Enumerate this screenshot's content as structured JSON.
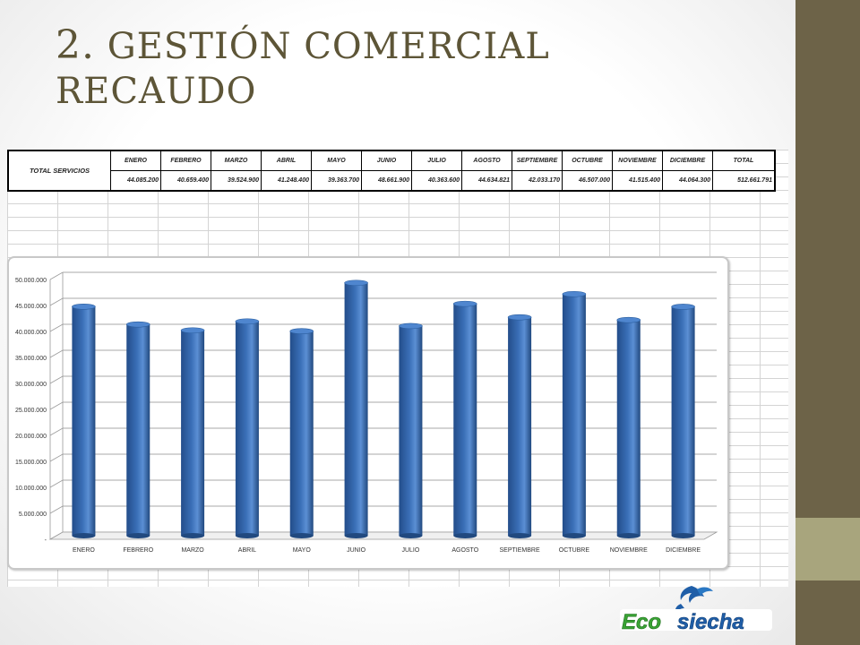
{
  "slide": {
    "title_number": "2.",
    "title_line1": "GESTIÓN COMERCIAL",
    "title_line2": "RECAUDO"
  },
  "table": {
    "row_label": "TOTAL SERVICIOS",
    "headers": [
      "ENERO",
      "FEBRERO",
      "MARZO",
      "ABRIL",
      "MAYO",
      "JUNIO",
      "JULIO",
      "AGOSTO",
      "SEPTIEMBRE",
      "OCTUBRE",
      "NOVIEMBRE",
      "DICIEMBRE",
      "TOTAL"
    ],
    "values": [
      "44.085.200",
      "40.659.400",
      "39.524.900",
      "41.248.400",
      "39.363.700",
      "48.661.900",
      "40.363.600",
      "44.634.821",
      "42.033.170",
      "46.507.000",
      "41.515.400",
      "44.064.300",
      "512.661.791"
    ]
  },
  "chart_data": {
    "type": "bar",
    "categories": [
      "ENERO",
      "FEBRERO",
      "MARZO",
      "ABRIL",
      "MAYO",
      "JUNIO",
      "JULIO",
      "AGOSTO",
      "SEPTIEMBRE",
      "OCTUBRE",
      "NOVIEMBRE",
      "DICIEMBRE"
    ],
    "values": [
      44085200,
      40659400,
      39524900,
      41248400,
      39363700,
      48661900,
      40363600,
      44634821,
      42033170,
      46507000,
      41515400,
      44064300
    ],
    "ylim": [
      0,
      50000000
    ],
    "yticks": [
      "-",
      "5.000.000",
      "10.000.000",
      "15.000.000",
      "20.000.000",
      "25.000.000",
      "30.000.000",
      "35.000.000",
      "40.000.000",
      "45.000.000",
      "50.000.000"
    ],
    "bar_color": "#3a6fb7",
    "grid": true,
    "title": "",
    "xlabel": "",
    "ylabel": ""
  },
  "logo": {
    "text_a": "Eco",
    "text_b": "siecha"
  },
  "colors": {
    "side_dark": "#6d6348",
    "side_light": "#a8a57d",
    "title": "#5d5537"
  }
}
